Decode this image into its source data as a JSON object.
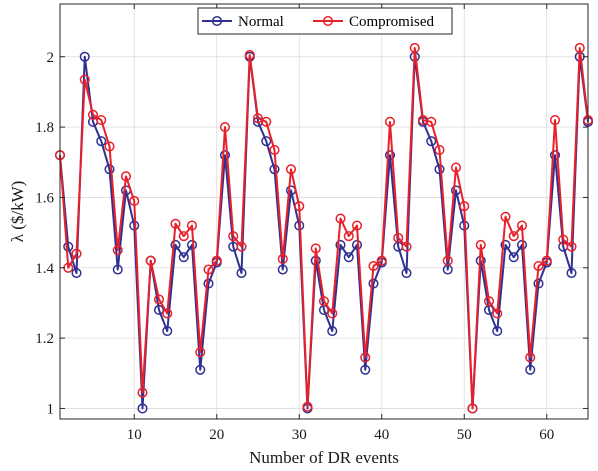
{
  "chart_data": {
    "type": "line",
    "xlabel": "Number of DR events",
    "ylabel": "λ ($/kW)",
    "xlim": [
      1,
      65
    ],
    "ylim": [
      0.97,
      2.15
    ],
    "xticks": [
      10,
      20,
      30,
      40,
      50,
      60
    ],
    "yticks": [
      1,
      1.2,
      1.4,
      1.6,
      1.8,
      2
    ],
    "ytick_labels": [
      "1",
      "1.2",
      "1.4",
      "1.6",
      "1.8",
      "2"
    ],
    "grid": true,
    "legend_position": "top",
    "x": [
      1,
      2,
      3,
      4,
      5,
      6,
      7,
      8,
      9,
      10,
      11,
      12,
      13,
      14,
      15,
      16,
      17,
      18,
      19,
      20,
      21,
      22,
      23,
      24,
      25,
      26,
      27,
      28,
      29,
      30,
      31,
      32,
      33,
      34,
      35,
      36,
      37,
      38,
      39,
      40,
      41,
      42,
      43,
      44,
      45,
      46,
      47,
      48,
      49,
      50,
      51,
      52,
      53,
      54,
      55,
      56,
      57,
      58,
      59,
      60,
      61,
      62,
      63,
      64,
      65
    ],
    "series": [
      {
        "name": "Normal",
        "color": "#2e3192",
        "values": [
          1.72,
          1.46,
          1.385,
          2.0,
          1.815,
          1.76,
          1.68,
          1.395,
          1.62,
          1.52,
          1.0,
          1.42,
          1.28,
          1.22,
          1.465,
          1.43,
          1.465,
          1.11,
          1.355,
          1.415,
          1.72,
          1.46,
          1.385,
          2.0,
          1.815,
          1.76,
          1.68,
          1.395,
          1.62,
          1.52,
          1.0,
          1.42,
          1.28,
          1.22,
          1.465,
          1.43,
          1.465,
          1.11,
          1.355,
          1.415,
          1.72,
          1.46,
          1.385,
          2.0,
          1.815,
          1.76,
          1.68,
          1.395,
          1.62,
          1.52,
          1.0,
          1.42,
          1.28,
          1.22,
          1.465,
          1.43,
          1.465,
          1.11,
          1.355,
          1.415,
          1.72,
          1.46,
          1.385,
          2.0,
          1.815
        ]
      },
      {
        "name": "Compromised",
        "color": "#e8202a",
        "values": [
          1.72,
          1.4,
          1.44,
          1.935,
          1.835,
          1.82,
          1.745,
          1.45,
          1.66,
          1.59,
          1.045,
          1.42,
          1.31,
          1.27,
          1.525,
          1.49,
          1.52,
          1.16,
          1.395,
          1.42,
          1.8,
          1.49,
          1.46,
          2.005,
          1.825,
          1.815,
          1.735,
          1.425,
          1.68,
          1.575,
          1.005,
          1.455,
          1.305,
          1.27,
          1.54,
          1.49,
          1.52,
          1.145,
          1.405,
          1.42,
          1.815,
          1.485,
          1.46,
          2.025,
          1.82,
          1.815,
          1.735,
          1.42,
          1.685,
          1.575,
          1.0,
          1.465,
          1.305,
          1.27,
          1.545,
          1.49,
          1.52,
          1.145,
          1.405,
          1.42,
          1.82,
          1.48,
          1.46,
          2.025,
          1.82
        ]
      }
    ]
  }
}
